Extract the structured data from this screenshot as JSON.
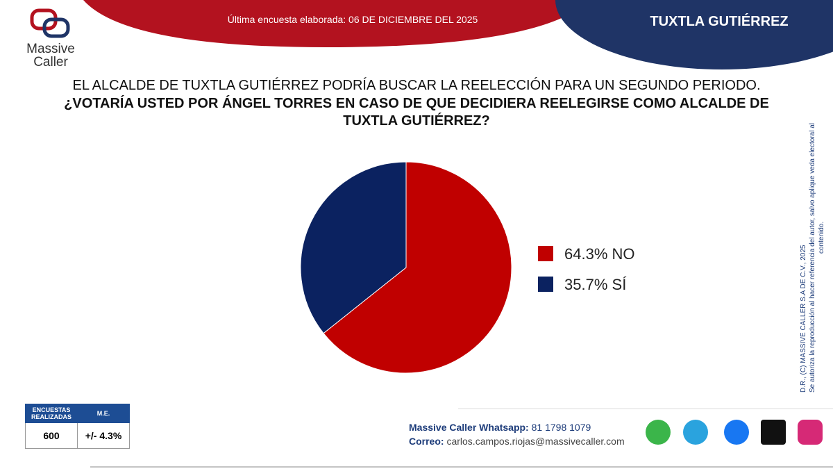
{
  "header": {
    "survey_date": "Última encuesta elaborada: 06 DE DICIEMBRE DEL 2025",
    "city": "TUXTLA GUTIÉRREZ"
  },
  "logo": {
    "line1": "Massive",
    "line2": "Caller"
  },
  "chart_data": {
    "type": "pie",
    "title": "EL ALCALDE DE TUXTLA GUTIÉRREZ PODRÍA BUSCAR LA REELECCIÓN PARA UN SEGUNDO PERIODO.",
    "subtitle": "¿VOTARÍA USTED POR ÁNGEL TORRES EN CASO DE QUE DECIDIERA REELEGIRSE COMO ALCALDE DE TUXTLA GUTIÉRREZ?",
    "categories": [
      "NO",
      "SÍ"
    ],
    "values": [
      64.3,
      35.7
    ],
    "value_labels": [
      "64.3%",
      "35.7%"
    ],
    "colors": [
      "#c00000",
      "#0b2260"
    ]
  },
  "table": {
    "header": [
      "ENCUESTAS REALIZADAS",
      "M.E."
    ],
    "rows": [
      [
        "600",
        "+/- 4.3%"
      ]
    ]
  },
  "contact": {
    "whatsapp_label": "Massive Caller Whatsapp:",
    "whatsapp": "81 1798 1079",
    "email_label": "Correo:",
    "email": "carlos.campos.riojas@massivecaller.com"
  },
  "copyright": {
    "line1": "D.R., (C) MASSIVE CALLER S.A DE C.V., 2025",
    "line2": "Se autoriza la reproducción al hacer referencia del autor, salvo aplique veda electoral al",
    "line3": "contenido."
  }
}
